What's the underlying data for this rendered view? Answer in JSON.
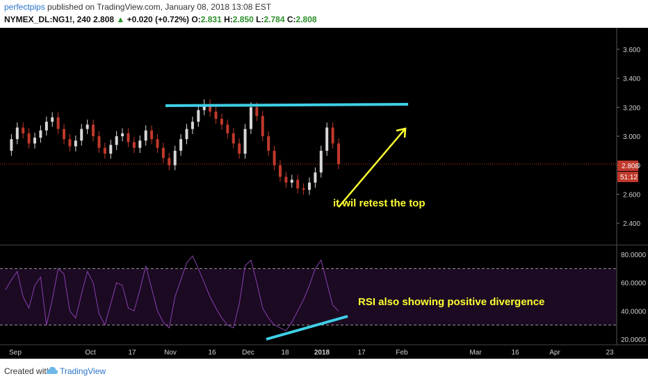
{
  "header": {
    "author": "perfectpips",
    "published": "published on TradingView.com, January 08, 2018 13:08 EST",
    "symbol": "NYMEX_DL:NG1!, 240",
    "last": "2.808",
    "change": "+0.020 (+0.72%)",
    "o_label": "O:",
    "o_value": "2.831",
    "h_label": "H:",
    "h_value": "2.850",
    "l_label": "L:",
    "l_value": "2.784",
    "c_label": "C:",
    "c_value": "2.808"
  },
  "footer": {
    "created_with": "Created with",
    "brand": "TradingView"
  },
  "price_badge": "2.808",
  "countdown_badge": "51:12",
  "annotations": {
    "retest": "it wil retest the top",
    "rsi": "RSI also showing positive divergence"
  },
  "colors": {
    "background": "#000000",
    "candle_up": "#d8d8d8",
    "candle_down": "#c0392b",
    "resistance_line": "#3fd0e6",
    "arrow": "#ffff33",
    "annotation_text": "#ffff33",
    "rsi_line": "#8a3fb0",
    "rsi_band": "#1b0a22",
    "price_badge": "#c0392b"
  },
  "chart_data": [
    {
      "type": "line",
      "x_ticks": [
        "Sep",
        "Oct",
        "17",
        "Nov",
        "16",
        "Dec",
        "18",
        "2018",
        "17",
        "Feb",
        "Mar",
        "16",
        "Apr",
        "23"
      ],
      "y_ticks": [
        "3.600",
        "3.400",
        "3.200",
        "3.000",
        "2.800",
        "2.600",
        "2.400"
      ],
      "ylim": [
        2.3,
        3.7
      ],
      "last_price": 2.808,
      "resistance_level": 3.23,
      "series": [
        {
          "x": [
            0,
            2,
            4,
            6,
            8,
            10,
            12,
            14,
            16,
            18,
            20,
            22,
            24,
            26,
            28,
            30,
            32,
            34,
            36,
            38,
            40,
            42,
            44,
            46,
            48,
            50,
            52,
            54,
            56,
            58,
            60,
            62,
            64,
            66,
            68,
            70,
            72,
            74,
            76,
            78,
            80,
            82,
            84,
            86,
            88,
            90,
            92,
            94,
            96,
            98,
            100,
            102,
            104,
            106,
            108,
            110,
            112,
            114
          ],
          "values": [
            2.9,
            2.98,
            3.06,
            3.02,
            2.95,
            2.99,
            3.04,
            3.1,
            3.13,
            3.05,
            2.98,
            2.93,
            2.97,
            3.05,
            3.08,
            3.0,
            2.92,
            2.88,
            2.94,
            3.0,
            3.02,
            2.96,
            2.92,
            2.97,
            3.04,
            2.98,
            2.92,
            2.85,
            2.8,
            2.9,
            2.98,
            3.05,
            3.1,
            3.18,
            3.22,
            3.17,
            3.12,
            3.08,
            3.02,
            2.95,
            2.88,
            3.05,
            3.2,
            3.14,
            3.0,
            2.9,
            2.8,
            2.72,
            2.68,
            2.7,
            2.64,
            2.63,
            2.68,
            2.75,
            2.9,
            3.06,
            2.95,
            2.808
          ]
        }
      ]
    },
    {
      "type": "line",
      "y_ticks": [
        "80.0000",
        "60.0000",
        "40.0000",
        "20.0000"
      ],
      "ylim": [
        18,
        84
      ],
      "bands": [
        70,
        30
      ],
      "series": [
        {
          "x": [
            0,
            2,
            4,
            6,
            8,
            10,
            12,
            14,
            16,
            18,
            20,
            22,
            24,
            26,
            28,
            30,
            32,
            34,
            36,
            38,
            40,
            42,
            44,
            46,
            48,
            50,
            52,
            54,
            56,
            58,
            60,
            62,
            64,
            66,
            68,
            70,
            72,
            74,
            76,
            78,
            80,
            82,
            84,
            86,
            88,
            90,
            92,
            94,
            96,
            98,
            100,
            102,
            104,
            106,
            108,
            110,
            112,
            114
          ],
          "values": [
            55,
            62,
            68,
            50,
            42,
            58,
            64,
            30,
            48,
            70,
            66,
            40,
            35,
            52,
            68,
            60,
            38,
            30,
            45,
            60,
            58,
            42,
            40,
            55,
            72,
            56,
            40,
            32,
            28,
            50,
            62,
            74,
            79,
            70,
            60,
            50,
            42,
            35,
            30,
            28,
            45,
            72,
            76,
            60,
            42,
            35,
            30,
            28,
            26,
            32,
            40,
            48,
            58,
            70,
            76,
            60,
            44,
            40
          ]
        }
      ]
    }
  ]
}
